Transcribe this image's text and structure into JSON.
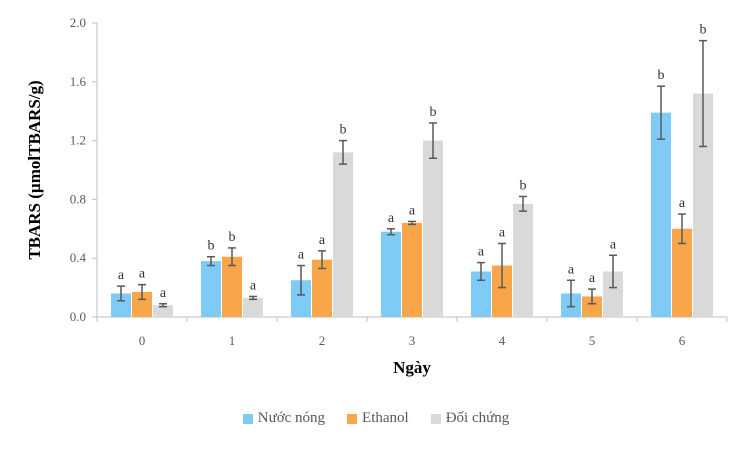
{
  "chart_data": {
    "type": "bar",
    "xlabel": "Ngày",
    "ylabel": "TBARS (µmolTBARS/g)",
    "categories": [
      "0",
      "1",
      "2",
      "3",
      "4",
      "5",
      "6"
    ],
    "ylim": [
      0,
      2.0
    ],
    "yticks": [
      "0.0",
      "0.4",
      "0.8",
      "1.2",
      "1.6",
      "2.0"
    ],
    "grid": false,
    "legend_position": "bottom",
    "series": [
      {
        "name": "Nước nóng",
        "color": "#7fcbf7",
        "values": [
          0.16,
          0.38,
          0.25,
          0.58,
          0.31,
          0.16,
          1.39
        ],
        "errors": [
          0.05,
          0.03,
          0.1,
          0.02,
          0.06,
          0.09,
          0.18
        ],
        "labels": [
          "a",
          "b",
          "a",
          "a",
          "a",
          "a",
          "b"
        ]
      },
      {
        "name": "Ethanol",
        "color": "#f9a64a",
        "values": [
          0.17,
          0.41,
          0.39,
          0.64,
          0.35,
          0.14,
          0.6
        ],
        "errors": [
          0.05,
          0.06,
          0.06,
          0.01,
          0.15,
          0.05,
          0.1
        ],
        "labels": [
          "a",
          "b",
          "a",
          "a",
          "a",
          "a",
          "a"
        ]
      },
      {
        "name": "Đối chứng",
        "color": "#d9d9d9",
        "values": [
          0.08,
          0.13,
          1.12,
          1.2,
          0.77,
          0.31,
          1.52
        ],
        "errors": [
          0.01,
          0.01,
          0.08,
          0.12,
          0.05,
          0.11,
          0.36
        ],
        "labels": [
          "a",
          "a",
          "b",
          "b",
          "b",
          "a",
          "b"
        ]
      }
    ]
  }
}
